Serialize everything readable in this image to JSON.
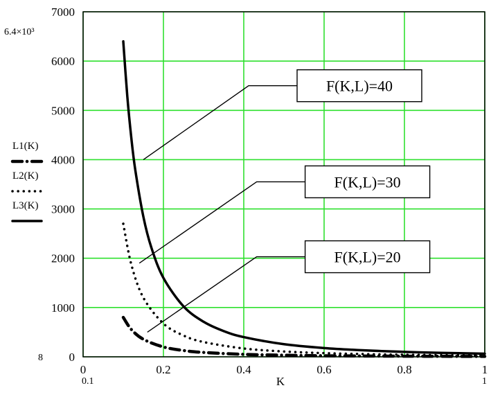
{
  "chart_data": {
    "type": "line",
    "title": "",
    "xlabel": "K",
    "ylabel": "",
    "xlim": [
      0,
      1
    ],
    "ylim": [
      0,
      7000
    ],
    "grid": true,
    "colors": {
      "grid": "#2ee02e",
      "lines": "#000000",
      "box": "#000000",
      "background": "#ffffff"
    },
    "x_ticks": [
      "0",
      "0.2",
      "0.4",
      "0.6",
      "0.8",
      "1"
    ],
    "y_ticks": [
      "0",
      "1000",
      "2000",
      "3000",
      "4000",
      "5000",
      "6000",
      "7000"
    ],
    "axis_annotations": {
      "y_top": "6.4×10³",
      "y_bottom": "8",
      "x_left": "0.1",
      "x_right": "1"
    },
    "legend_placement": "left",
    "series": [
      {
        "name": "L1(K)",
        "style": "dash-dot",
        "x": [
          0.1,
          0.12,
          0.15,
          0.2,
          0.25,
          0.3,
          0.4,
          0.5,
          0.6,
          0.7,
          0.8,
          0.9,
          1.0
        ],
        "y": [
          800,
          556,
          356,
          200,
          128,
          89,
          50,
          32,
          22,
          16,
          13,
          10,
          8
        ]
      },
      {
        "name": "L2(K)",
        "style": "dotted",
        "x": [
          0.1,
          0.12,
          0.15,
          0.2,
          0.25,
          0.3,
          0.4,
          0.5,
          0.6,
          0.7,
          0.8,
          0.9,
          1.0
        ],
        "y": [
          2700,
          1875,
          1200,
          675,
          432,
          300,
          169,
          108,
          75,
          55,
          42,
          33,
          27
        ]
      },
      {
        "name": "L3(K)",
        "style": "solid",
        "x": [
          0.1,
          0.11,
          0.12,
          0.13,
          0.15,
          0.17,
          0.2,
          0.25,
          0.3,
          0.35,
          0.4,
          0.5,
          0.6,
          0.7,
          0.8,
          0.9,
          1.0
        ],
        "y": [
          6400,
          5289,
          4444,
          3787,
          2844,
          2215,
          1600,
          1024,
          711,
          522,
          400,
          256,
          178,
          131,
          100,
          79,
          64
        ]
      }
    ],
    "annotations": [
      {
        "text": "F(K,L)=40",
        "series": "L3(K)",
        "point": [
          0.15,
          4000
        ],
        "label_at": [
          0.55,
          5500
        ]
      },
      {
        "text": "F(K,L)=30",
        "series": "L2(K)",
        "point": [
          0.14,
          1900
        ],
        "label_at": [
          0.57,
          3550
        ]
      },
      {
        "text": "F(K,L)=20",
        "series": "L1(K)",
        "point": [
          0.16,
          500
        ],
        "label_at": [
          0.57,
          2030
        ]
      }
    ]
  }
}
